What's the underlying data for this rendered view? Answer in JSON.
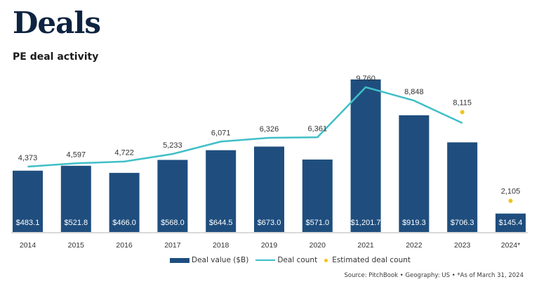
{
  "page": {
    "title": "Deals",
    "subtitle": "PE deal activity",
    "source": "Source: PitchBook  •  Geography: US  •  *As of March 31, 2024"
  },
  "colors": {
    "bar": "#1f4e7e",
    "line": "#40bfc7",
    "estimate": "#f2c31b",
    "axis": "#d9d9d9",
    "title": "#0e2341"
  },
  "chart_data": {
    "type": "bar",
    "title": "PE deal activity",
    "xlabel": "",
    "ylabel": "",
    "categories": [
      "2014",
      "2015",
      "2016",
      "2017",
      "2018",
      "2019",
      "2020",
      "2021",
      "2022",
      "2023",
      "2024*"
    ],
    "series": [
      {
        "name": "Deal value ($B)",
        "type": "bar",
        "values": [
          483.1,
          521.8,
          466.0,
          568.0,
          644.5,
          673.0,
          571.0,
          1201.7,
          919.3,
          706.3,
          145.4
        ],
        "labels": [
          "$483.1",
          "$521.8",
          "$466.0",
          "$568.0",
          "$644.5",
          "$673.0",
          "$571.0",
          "$1,201.7",
          "$919.3",
          "$706.3",
          "$145.4"
        ]
      },
      {
        "name": "Deal count",
        "type": "line",
        "values": [
          4373,
          4597,
          4722,
          5233,
          6071,
          6326,
          6361,
          9760,
          8848,
          7330,
          null
        ],
        "labels": [
          "4,373",
          "4,597",
          "4,722",
          "5,233",
          "6,071",
          "6,326",
          "6,361",
          "9,760",
          "8,848",
          null,
          null
        ]
      },
      {
        "name": "Estimated deal count",
        "type": "scatter",
        "values": [
          null,
          null,
          null,
          null,
          null,
          null,
          null,
          null,
          null,
          8115,
          2105
        ],
        "labels": [
          null,
          null,
          null,
          null,
          null,
          null,
          null,
          null,
          null,
          "8,115",
          "2,105"
        ]
      }
    ],
    "bar_ylim": [
      0,
      1300
    ],
    "line_ylim": [
      0,
      10500
    ],
    "grid": false,
    "legend": {
      "position": "bottom-center",
      "entries": [
        "Deal value ($B)",
        "Deal count",
        "Estimated deal count"
      ]
    },
    "footnote": "*As of March 31, 2024"
  }
}
